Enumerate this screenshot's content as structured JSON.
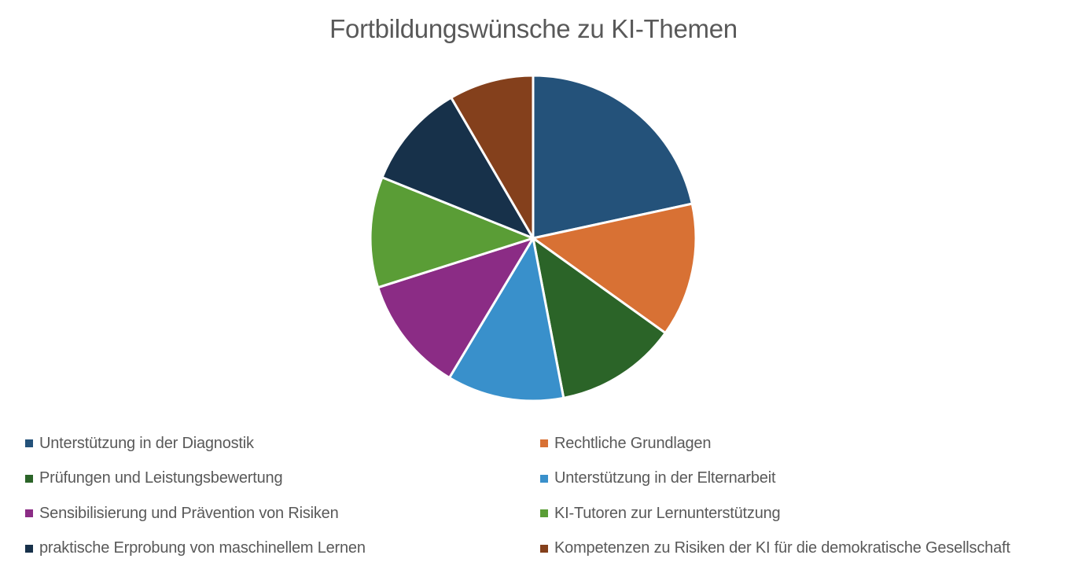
{
  "chart_data": {
    "type": "pie",
    "title": "Fortbildungswünsche zu KI-Themen",
    "start_angle_deg": 0,
    "direction": "clockwise",
    "legend_position": "bottom",
    "unit": "percent (estimated from slice angles)",
    "categories": [
      "Unterstützung in der Diagnostik",
      "Rechtliche Grundlagen",
      "Prüfungen und Leistungsbewertung",
      "Unterstützung in der Elternarbeit",
      "Sensibilisierung und Prävention von Risiken",
      "KI-Tutoren zur Lernunterstützung",
      "praktische Erprobung von maschinellem Lernen",
      "Kompetenzen zu Risiken der KI für die demokratische Gesellschaft"
    ],
    "values": [
      21.6,
      13.3,
      12.1,
      11.6,
      11.5,
      11.0,
      10.5,
      8.4
    ],
    "colors": [
      "#24527A",
      "#D87134",
      "#2B6428",
      "#3990CB",
      "#8B2C85",
      "#5A9D36",
      "#17314A",
      "#84401C"
    ]
  },
  "title": "Fortbildungswünsche zu KI-Themen",
  "legend": {
    "items": [
      {
        "label": "Unterstützung in der Diagnostik",
        "color": "#24527A"
      },
      {
        "label": "Rechtliche Grundlagen",
        "color": "#D87134"
      },
      {
        "label": "Prüfungen und Leistungsbewertung",
        "color": "#2B6428"
      },
      {
        "label": "Unterstützung in der Elternarbeit",
        "color": "#3990CB"
      },
      {
        "label": "Sensibilisierung und Prävention von Risiken",
        "color": "#8B2C85"
      },
      {
        "label": "KI-Tutoren zur Lernunterstützung",
        "color": "#5A9D36"
      },
      {
        "label": "praktische Erprobung von maschinellem Lernen",
        "color": "#17314A"
      },
      {
        "label": "Kompetenzen zu Risiken der KI für die demokratische Gesellschaft",
        "color": "#84401C"
      }
    ]
  }
}
